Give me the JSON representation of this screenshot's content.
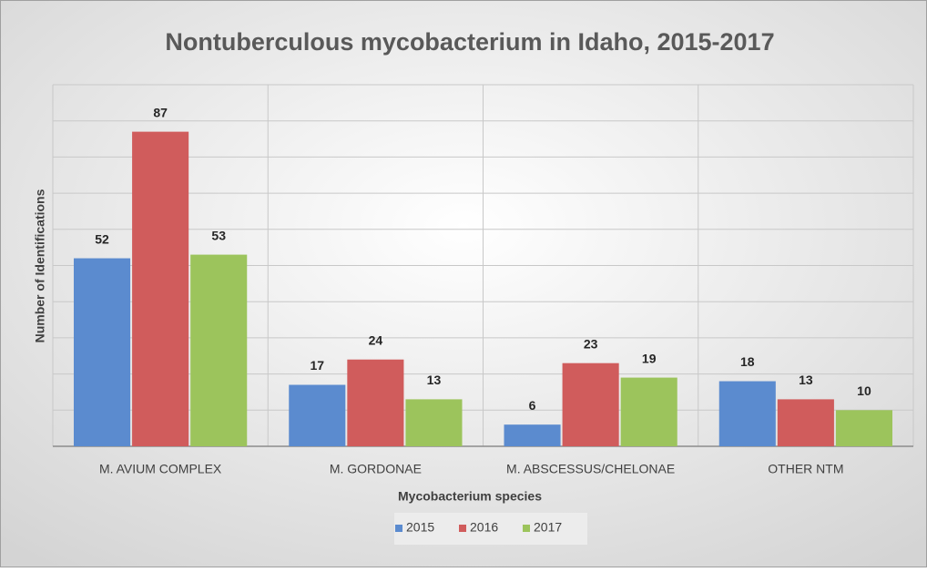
{
  "chart_data": {
    "type": "bar",
    "title": "Nontuberculous mycobacterium in Idaho, 2015-2017",
    "x_label": "Mycobacterium species",
    "y_label": "Number of Identifications",
    "categories": [
      "M. AVIUM COMPLEX",
      "M. GORDONAE",
      "M. ABSCESSUS/CHELONAE",
      "OTHER NTM"
    ],
    "series": [
      {
        "name": "2015",
        "color": "#5b8bcf",
        "values": [
          52,
          17,
          6,
          18
        ]
      },
      {
        "name": "2016",
        "color": "#d05c5c",
        "values": [
          87,
          24,
          23,
          13
        ]
      },
      {
        "name": "2017",
        "color": "#9cc45c",
        "values": [
          53,
          13,
          19,
          10
        ]
      }
    ],
    "ylim": [
      0,
      100
    ],
    "yticks": [
      0,
      10,
      20,
      30,
      40,
      50,
      60,
      70,
      80,
      90,
      100
    ],
    "grid": true,
    "legend": "bottom"
  }
}
